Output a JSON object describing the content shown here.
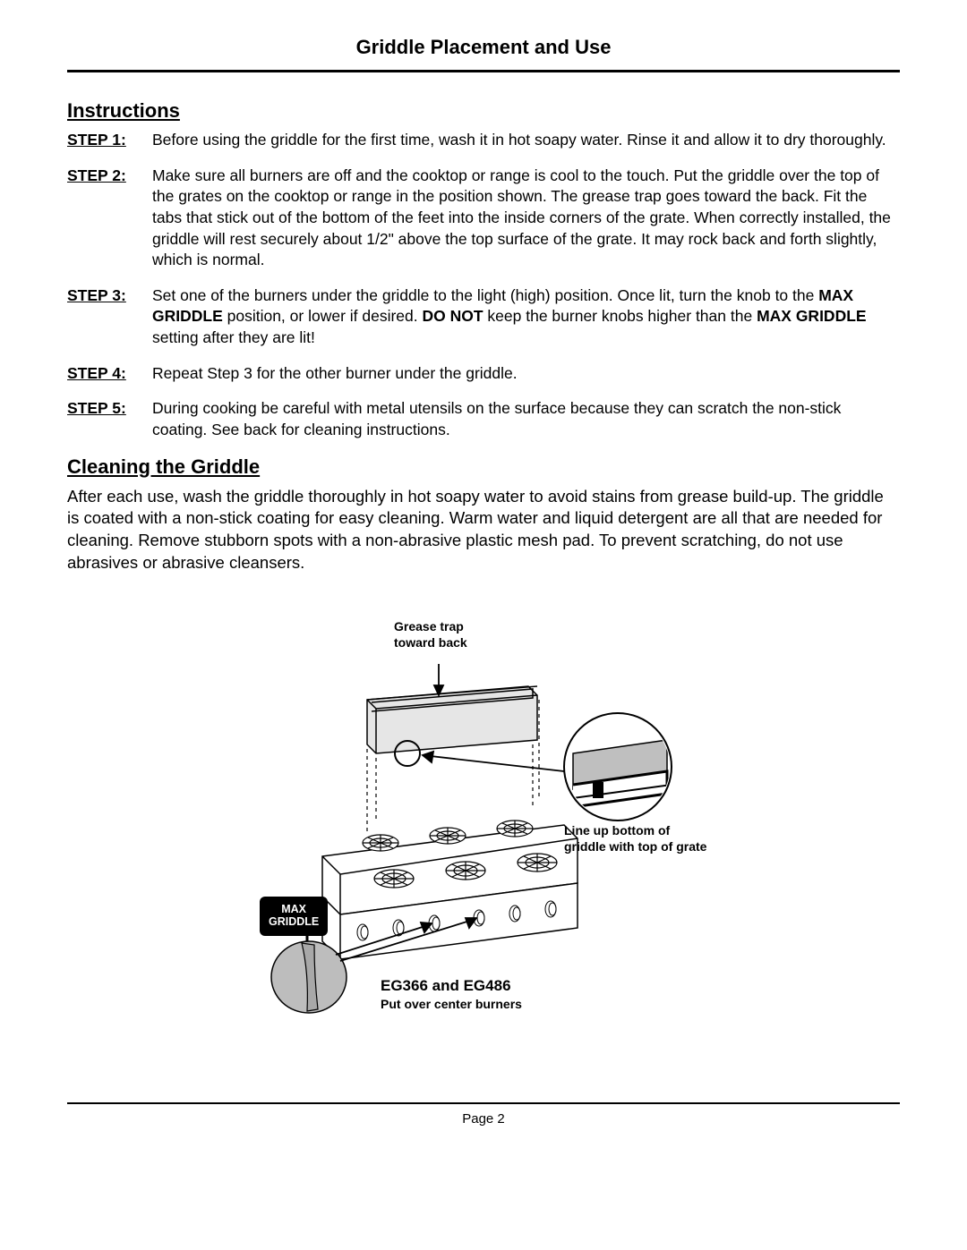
{
  "title": "Griddle Placement and Use",
  "section1": "Instructions",
  "steps": [
    {
      "label": "STEP 1:",
      "html": "Before using the griddle for the first time, wash it in hot soapy water. Rinse it and allow it to dry thoroughly."
    },
    {
      "label": "STEP 2:",
      "html": "Make sure all burners are off and the cooktop or range is cool to the touch. Put the griddle over the top of the grates on the cooktop or range in the position shown. The grease trap goes toward the back. Fit the tabs that stick out of the bottom of the feet into the inside corners of the grate. When correctly installed, the griddle will rest securely about 1/2\" above the top surface of the grate. It may rock back and forth slightly, which is normal."
    },
    {
      "label": "STEP 3:",
      "html": "Set one of the burners under the griddle to the light (high) position. Once lit, turn the knob to the <b>MAX GRIDDLE</b> position, or lower if desired. <b>DO NOT</b> keep the burner knobs higher than the <b>MAX GRIDDLE</b> setting after they are lit!"
    },
    {
      "label": "STEP 4:",
      "html": "Repeat Step 3 for the other burner under the griddle."
    },
    {
      "label": "STEP 5:",
      "html": "During cooking be careful with metal utensils on the surface because they can scratch the non-stick coating. See back for cleaning instructions."
    }
  ],
  "section2": "Cleaning the Griddle",
  "cleaning_text": "After each use, wash the griddle thoroughly in hot soapy water to avoid stains from grease build-up. The griddle is coated with a non-stick coating for easy cleaning. Warm water and liquid detergent are all that are needed for cleaning. Remove stubborn spots with a non-abrasive plastic mesh pad. To prevent scratching, do not use abrasives or abrasive cleansers.",
  "figure": {
    "grease_trap": "Grease trap\ntoward back",
    "lineup": "Line up bottom of\ngriddle with top of grate",
    "max_griddle": "MAX\nGRIDDLE",
    "model": "EG366 and EG486",
    "sub": "Put over center burners",
    "colors": {
      "griddle_fill": "#e6e6e6",
      "detail_fill": "#bfbfbf",
      "knob_fill": "#bdbdbd",
      "stroke": "#000000"
    }
  },
  "footer": "Page 2"
}
